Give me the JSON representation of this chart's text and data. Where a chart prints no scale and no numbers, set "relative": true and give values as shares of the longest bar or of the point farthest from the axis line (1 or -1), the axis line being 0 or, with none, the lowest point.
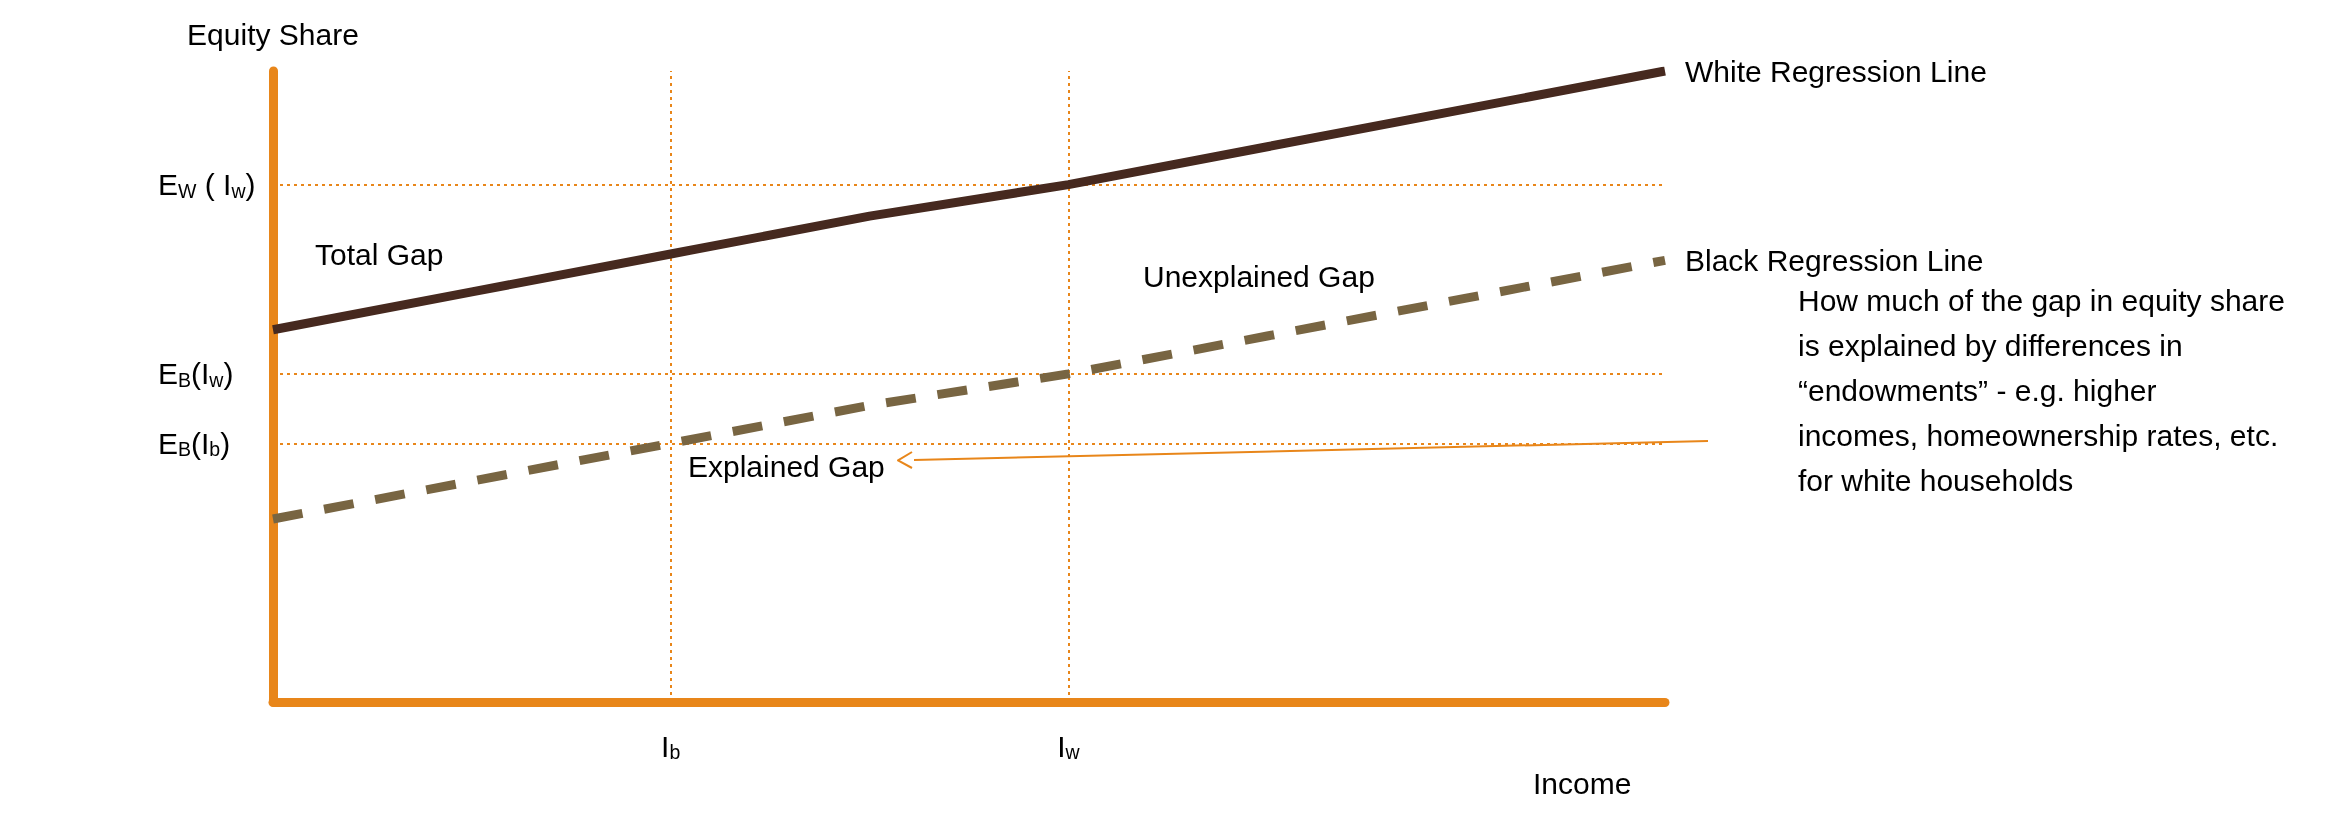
{
  "chart_data": {
    "type": "line",
    "relative": true,
    "ylabel": "Equity Share",
    "xlabel": "Income",
    "categories": [
      null,
      null,
      "I$_{b}$",
      null,
      "I$_{w}$",
      null,
      null,
      null
    ],
    "series": [
      {
        "name": "White Regression Line",
        "color": "#46291f",
        "values": [
          0.59,
          0.65,
          0.71,
          0.77,
          0.82,
          0.88,
          0.94,
          1.0
        ],
        "line_style": "solid"
      },
      {
        "name": "Black Regression Line",
        "color": "#786542",
        "values": [
          0.29,
          0.35,
          0.41,
          0.47,
          0.52,
          0.58,
          0.64,
          0.7
        ],
        "line_style": "dashed"
      }
    ],
    "ref_lines": [
      {
        "axis": "y",
        "value": 0.82,
        "label": "E$_{W}$ ( I$_{w}$)",
        "color": "#e8861a",
        "line_style": "dotted"
      },
      {
        "axis": "y",
        "value": 0.52,
        "label": "E$_{B}$(I$_{w}$)",
        "color": "#e8861a",
        "line_style": "dotted"
      },
      {
        "axis": "y",
        "value": 0.41,
        "label": "E$_{B}$(I$_{b}$)",
        "color": "#e8861a",
        "line_style": "dotted"
      },
      {
        "axis": "x",
        "value": "I$_{b}$",
        "label": null,
        "color": "#e8861a",
        "line_style": "dotted"
      },
      {
        "axis": "x",
        "value": "I$_{w}$",
        "label": null,
        "color": "#e8861a",
        "line_style": "dotted"
      }
    ],
    "annotations": [
      "Total Gap",
      "Unexplained Gap",
      "Explained Gap",
      "How much of the gap in equity share is explained by differences in “endowments” - e.g. higher incomes, homeownership rates, etc. for white households"
    ],
    "grid": false,
    "legend": false,
    "marker": "none"
  }
}
